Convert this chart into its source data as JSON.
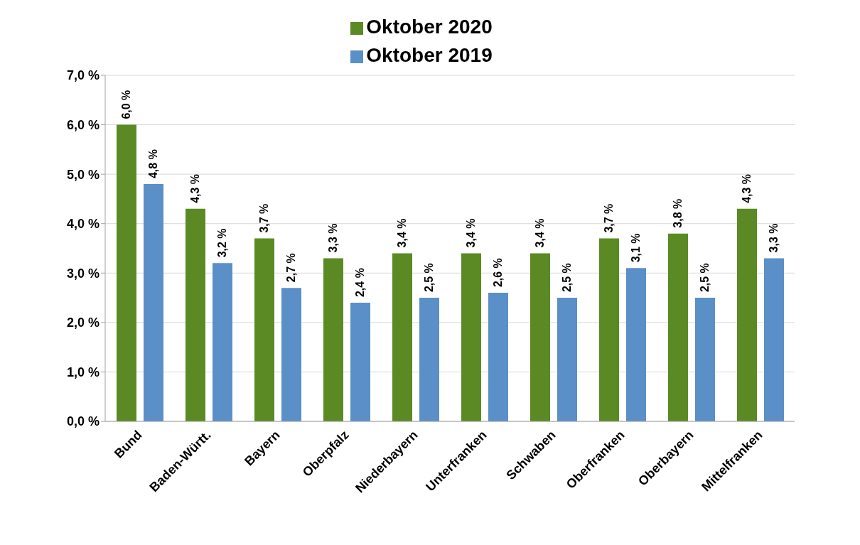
{
  "chart_data": {
    "type": "bar",
    "categories": [
      "Bund",
      "Baden-Württ.",
      "Bayern",
      "Oberpfalz",
      "Niederbayern",
      "Unterfranken",
      "Schwaben",
      "Oberfranken",
      "Oberbayern",
      "Mittelfranken"
    ],
    "series": [
      {
        "name": "Oktober 2020",
        "color": "#5b8a24",
        "values": [
          6.0,
          4.3,
          3.7,
          3.3,
          3.4,
          3.4,
          3.4,
          3.7,
          3.8,
          4.3
        ],
        "value_labels": [
          "6,0 %",
          "4,3 %",
          "3,7 %",
          "3,3 %",
          "3,4 %",
          "3,4 %",
          "3,4 %",
          "3,7 %",
          "3,8 %",
          "4,3 %"
        ]
      },
      {
        "name": "Oktober 2019",
        "color": "#5b8fc8",
        "values": [
          4.8,
          3.2,
          2.7,
          2.4,
          2.5,
          2.6,
          2.5,
          3.1,
          2.5,
          3.3
        ],
        "value_labels": [
          "4,8 %",
          "3,2 %",
          "2,7 %",
          "2,4 %",
          "2,5 %",
          "2,6 %",
          "2,5 %",
          "3,1 %",
          "2,5 %",
          "3,3 %"
        ]
      }
    ],
    "ylim": [
      0,
      7
    ],
    "yticks": [
      {
        "value": 0,
        "label": "0,0 %"
      },
      {
        "value": 1,
        "label": "1,0 %"
      },
      {
        "value": 2,
        "label": "2,0 %"
      },
      {
        "value": 3,
        "label": "3,0 %"
      },
      {
        "value": 4,
        "label": "4,0 %"
      },
      {
        "value": 5,
        "label": "5,0 %"
      },
      {
        "value": 6,
        "label": "6,0 %"
      },
      {
        "value": 7,
        "label": "7,0 %"
      }
    ],
    "grid": "y",
    "legend": "top"
  }
}
